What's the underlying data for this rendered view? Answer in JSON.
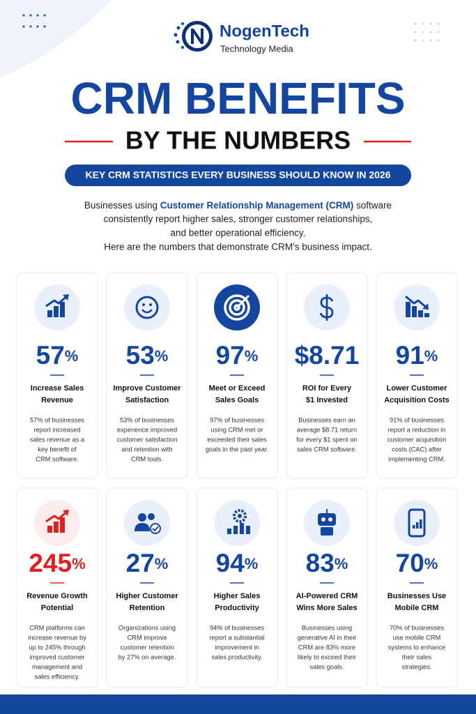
{
  "header": {
    "brand": "NogenTech",
    "tagline": "Technology Media"
  },
  "title": {
    "line1": "CRM BENEFITS",
    "line2": "BY THE NUMBERS"
  },
  "banner": "KEY CRM STATISTICS EVERY BUSINESS SHOULD KNOW IN 2026",
  "intro": {
    "before": "Businesses using",
    "highlight": "Customer Relationship Management (CRM)",
    "after": "software",
    "lines": [
      "consistently report higher sales, stronger customer relationships,",
      "and better operational efficiency.",
      "Here are the numbers that demonstrate CRM's business impact."
    ]
  },
  "cards": [
    {
      "value": "57",
      "unit": "%",
      "label": [
        "Increase Sales",
        "Revenue"
      ],
      "description": [
        "57% of businesses",
        "report increased",
        "sales revenue as a",
        "key benefit of",
        "CRM software."
      ]
    },
    {
      "value": "53",
      "unit": "%",
      "label": [
        "Improve Customer",
        "Satisfaction"
      ],
      "description": [
        "53% of businesses",
        "experience improved",
        "customer satisfaction",
        "and retention with",
        "CRM tools."
      ]
    },
    {
      "value": "97",
      "unit": "%",
      "label": [
        "Meet or Exceed",
        "Sales Goals"
      ],
      "description": [
        "97% of businesses",
        "using CRM met or",
        "exceeded their sales",
        "goals in the past year."
      ]
    },
    {
      "value": "$8.71",
      "label": [
        "ROI for Every",
        "$1 Invested"
      ],
      "description": [
        "Businesses earn an",
        "average $8.71 return",
        "for every $1 spent on",
        "sales CRM software."
      ]
    },
    {
      "value": "91",
      "unit": "%",
      "label": [
        "Lower Customer",
        "Acquisition Costs"
      ],
      "description": [
        "91% of businesses",
        "report a reduction in",
        "customer acquisition",
        "costs (CAC) after",
        "implementing CRM."
      ]
    },
    {
      "value": "245",
      "unit": "%",
      "label": [
        "Revenue Growth",
        "Potential"
      ],
      "description": [
        "CRM platforms can",
        "increase revenue by",
        "up to 245% through",
        "improved customer",
        "management and",
        "sales efficiency."
      ]
    },
    {
      "value": "27",
      "unit": "%",
      "label": [
        "Higher Customer",
        "Retention"
      ],
      "description": [
        "Organizations using",
        "CRM improve",
        "customer retention",
        "by 27% on average."
      ]
    },
    {
      "value": "94",
      "unit": "%",
      "label": [
        "Higher Sales",
        "Productivity"
      ],
      "description": [
        "94% of businesses",
        "report a substantial",
        "improvement in",
        "sales productivity."
      ]
    },
    {
      "value": "83",
      "unit": "%",
      "label": [
        "AI-Powered CRM",
        "Wins More Sales"
      ],
      "description": [
        "Businesses using",
        "generative AI in their",
        "CRM are 83% more",
        "likely to exceed their",
        "sales goals."
      ]
    },
    {
      "value": "70",
      "unit": "%",
      "label": [
        "Businesses Use",
        "Mobile CRM"
      ],
      "description": [
        "70% of businesses",
        "use mobile CRM",
        "systems to enhance",
        "their sales",
        "strategies."
      ]
    }
  ]
}
